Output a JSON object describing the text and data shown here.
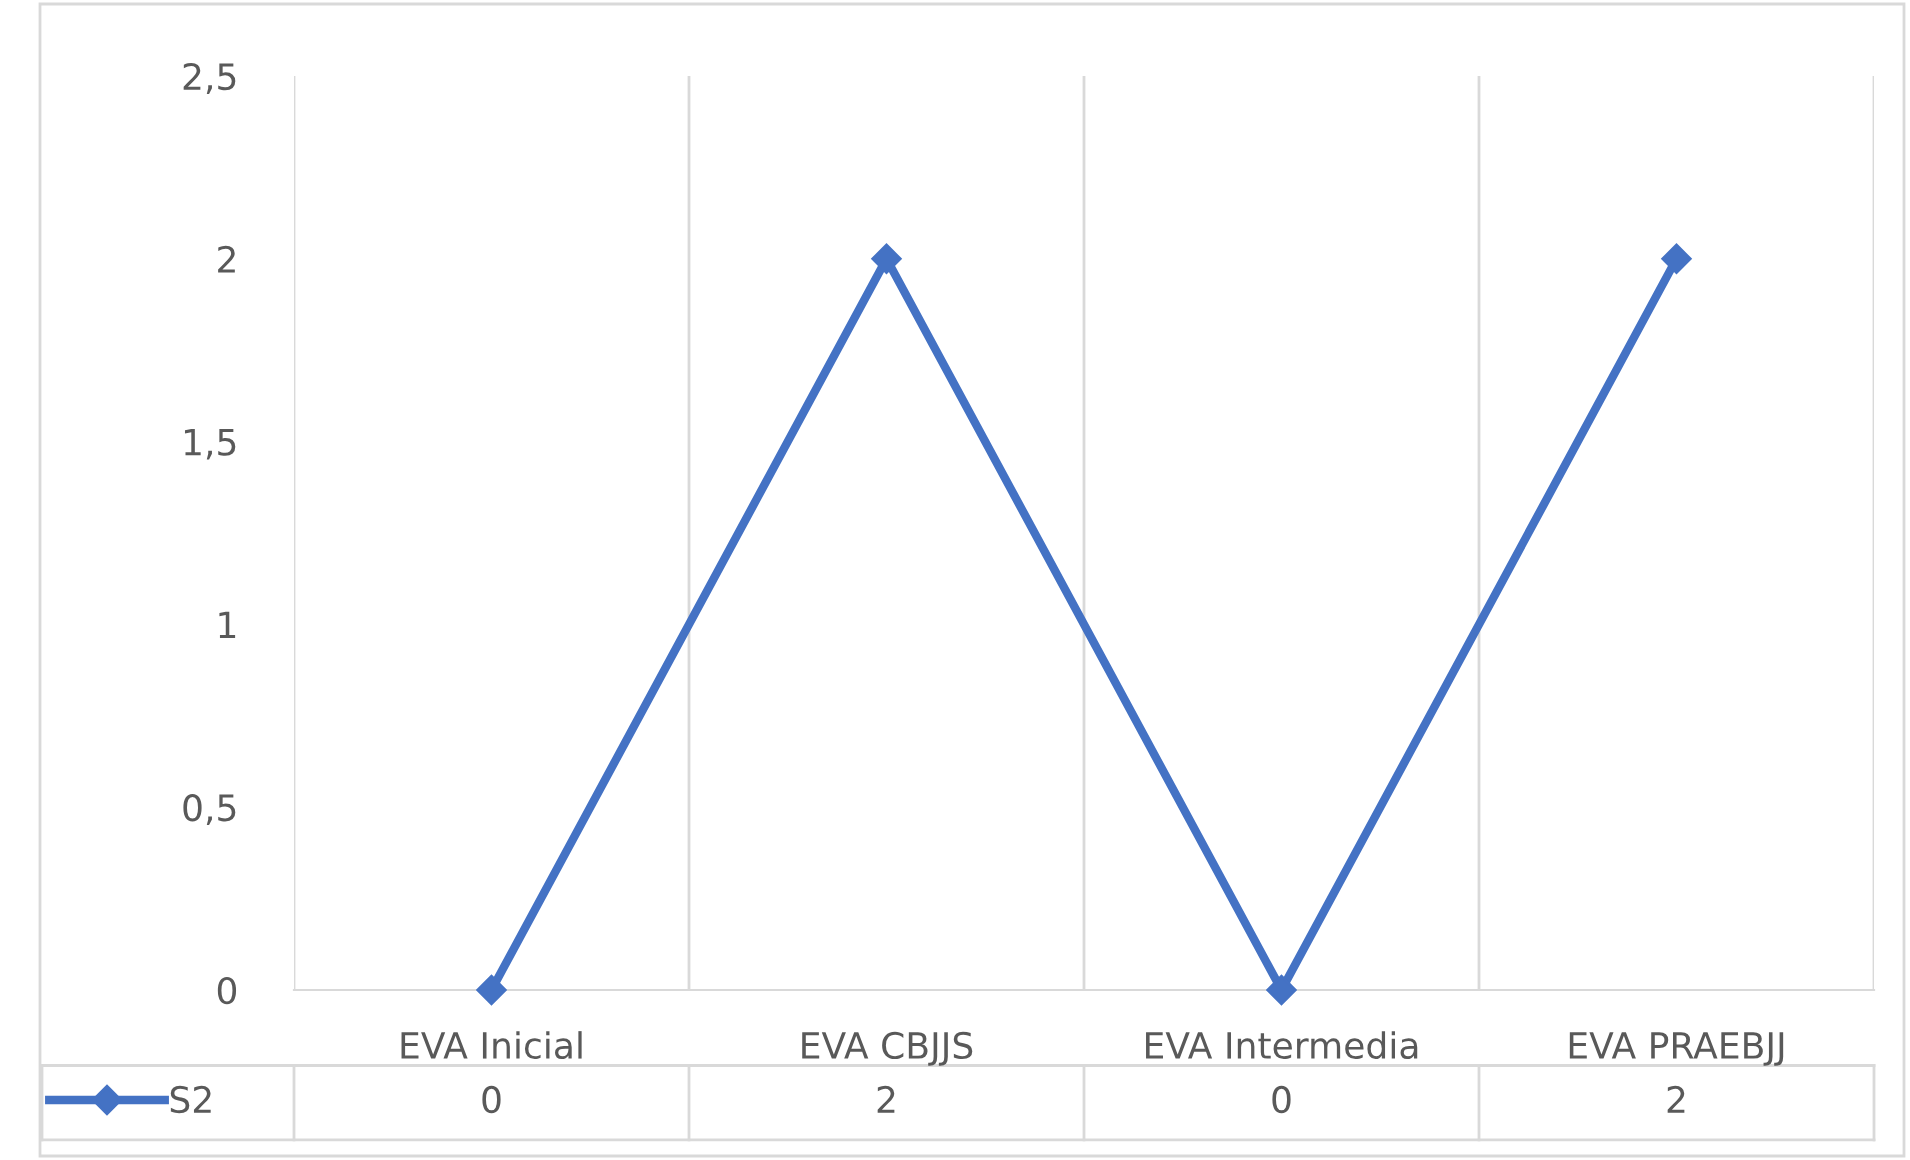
{
  "chart_data": {
    "type": "line",
    "categories": [
      "EVA Inicial",
      "EVA CBJJS",
      "EVA Intermedia",
      "EVA PRAEBJJ"
    ],
    "series": [
      {
        "name": "S2",
        "color": "#4472c4",
        "values": [
          0,
          2,
          0,
          2
        ]
      }
    ],
    "ylim": [
      0,
      2.5
    ],
    "yticks": [
      0,
      {
        "value": 0.5,
        "label": "0,5"
      },
      1,
      {
        "value": 1.5,
        "label": "1,5"
      },
      2,
      {
        "value": 2.5,
        "label": "2,5"
      }
    ],
    "grid": "x",
    "marker": "diamond",
    "line_style": "solid",
    "data_labels": true,
    "legend": "bottom left"
  }
}
